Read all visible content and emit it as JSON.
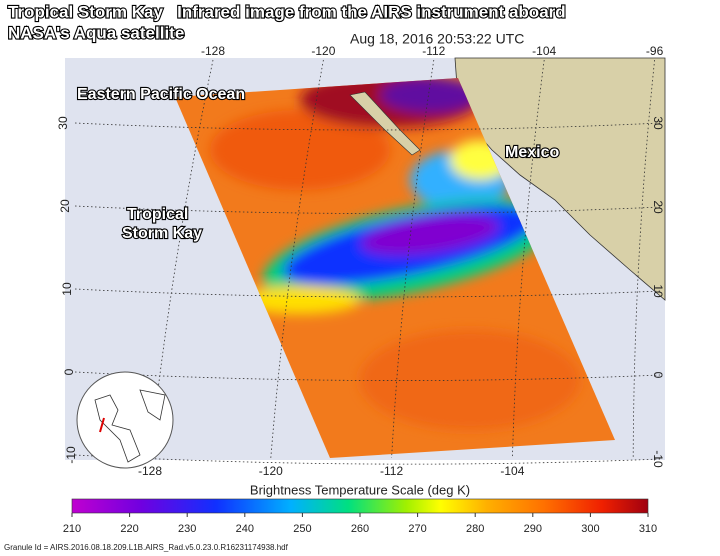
{
  "header": {
    "title": "Tropical Storm Kay   Infrared image from the AIRS instrument aboard",
    "subtitle": "NASA's Aqua satellite",
    "timestamp": "Aug 18, 2016 20:53:22 UTC"
  },
  "map": {
    "ocean_label": "Eastern Pacific Ocean",
    "land_label": "Mexico",
    "storm_label": [
      "Tropical",
      "Storm Kay"
    ],
    "lon_ticks_top": [
      -128,
      -120,
      -112,
      -104,
      -96
    ],
    "lon_ticks_bottom": [
      -128,
      -120,
      -112,
      -104
    ],
    "lat_ticks_left": [
      30,
      20,
      10,
      0,
      -10
    ],
    "lat_ticks_right": [
      30,
      20,
      10,
      0,
      -10
    ]
  },
  "colorbar": {
    "title": "Brightness Temperature Scale (deg K)",
    "range": [
      210,
      310
    ],
    "ticks": [
      210,
      220,
      230,
      240,
      250,
      260,
      270,
      280,
      290,
      300,
      310
    ]
  },
  "footer": {
    "granule_id": "Granule Id = AIRS.2016.08.18.209.L1B.AIRS_Rad.v5.0.23.0.R16231174938.hdf"
  }
}
